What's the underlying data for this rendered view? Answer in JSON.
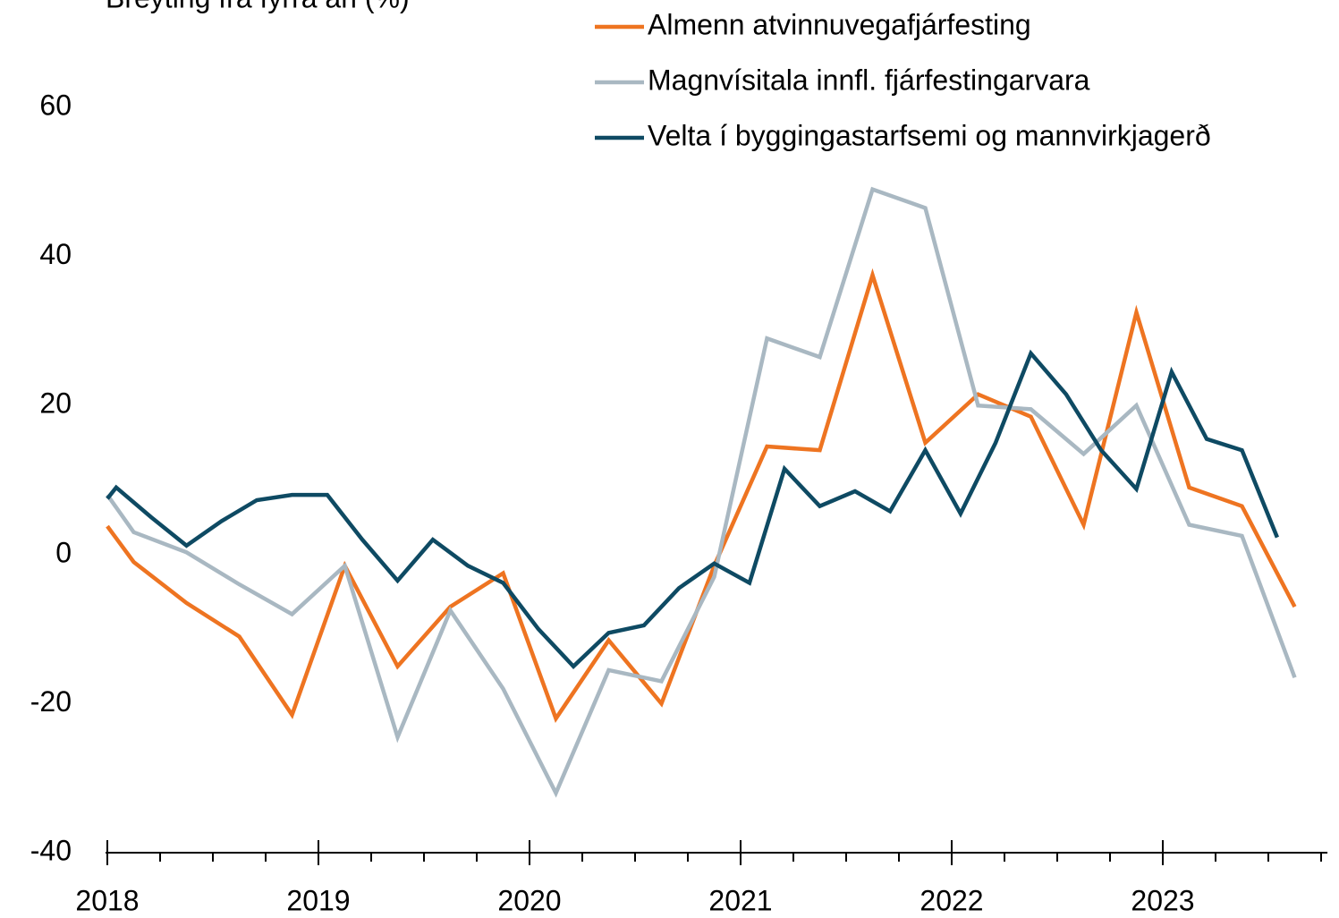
{
  "chart_data": {
    "type": "line",
    "y_label": "Breyting frá fyrra ári (%)",
    "ylim": [
      -40,
      60
    ],
    "yticks": [
      -40,
      -20,
      0,
      20,
      40,
      60
    ],
    "xlim": [
      2018,
      2023.78
    ],
    "xticks": [
      2018,
      2019,
      2020,
      2021,
      2022,
      2023
    ],
    "xminorticks": [
      2018.25,
      2018.5,
      2018.75,
      2019.25,
      2019.5,
      2019.75,
      2020.25,
      2020.5,
      2020.75,
      2021.25,
      2021.5,
      2021.75,
      2022.25,
      2022.5,
      2022.75,
      2023.25,
      2023.5,
      2023.75
    ],
    "grid": false,
    "legend": "upper right",
    "series": [
      {
        "name": "Almenn atvinnuvegafjárfesting",
        "color": "#ee7421",
        "x": [
          2018,
          2018.125,
          2018.375,
          2018.625,
          2018.875,
          2019.125,
          2019.375,
          2019.625,
          2019.875,
          2020.125,
          2020.375,
          2020.625,
          2020.875,
          2021.125,
          2021.375,
          2021.625,
          2021.875,
          2022.125,
          2022.375,
          2022.625,
          2022.875,
          2023.125,
          2023.375,
          2023.625
        ],
        "values": [
          3.8,
          -1,
          -6.5,
          -11,
          -21.5,
          -1.5,
          -15,
          -7,
          -2.5,
          -22,
          -11.5,
          -20,
          -1.5,
          14.5,
          14,
          37.5,
          15,
          21.5,
          18.5,
          4,
          32.5,
          9,
          6.5,
          -7
        ]
      },
      {
        "name": "Magnvísitala innfl. fjárfestingarvara",
        "color": "#a9b8c2",
        "x": [
          2018,
          2018.125,
          2018.375,
          2018.625,
          2018.875,
          2019.125,
          2019.375,
          2019.625,
          2019.875,
          2020.125,
          2020.375,
          2020.625,
          2020.875,
          2021.125,
          2021.375,
          2021.625,
          2021.875,
          2022.125,
          2022.375,
          2022.625,
          2022.875,
          2023.125,
          2023.375,
          2023.625
        ],
        "values": [
          8,
          3,
          0.3,
          -4,
          -8,
          -1.5,
          -24.5,
          -7.5,
          -18,
          -32,
          -15.5,
          -17,
          -3,
          29,
          26.5,
          49,
          46.5,
          20,
          19.5,
          13.5,
          20,
          4,
          2.5,
          -16.5
        ]
      },
      {
        "name": "Velta í byggingastarfsemi og mannvirkjagerð",
        "color": "#0e4a63",
        "x": [
          2018,
          2018.042,
          2018.208,
          2018.375,
          2018.542,
          2018.708,
          2018.875,
          2019.042,
          2019.208,
          2019.375,
          2019.542,
          2019.708,
          2019.875,
          2020.042,
          2020.208,
          2020.375,
          2020.542,
          2020.708,
          2020.875,
          2021.042,
          2021.208,
          2021.375,
          2021.542,
          2021.708,
          2021.875,
          2022.042,
          2022.208,
          2022.375,
          2022.542,
          2022.708,
          2022.875,
          2023.042,
          2023.208,
          2023.375,
          2023.542
        ],
        "values": [
          7.5,
          9,
          5,
          1.2,
          4.5,
          7.3,
          8,
          8,
          2,
          -3.5,
          2,
          -1.5,
          -3.8,
          -10,
          -15,
          -10.5,
          -9.5,
          -4.5,
          -1.2,
          -3.8,
          11.5,
          6.5,
          8.5,
          5.8,
          14,
          5.5,
          15,
          27,
          21.5,
          14,
          8.8,
          24.5,
          15.5,
          14,
          2.3
        ]
      }
    ]
  }
}
